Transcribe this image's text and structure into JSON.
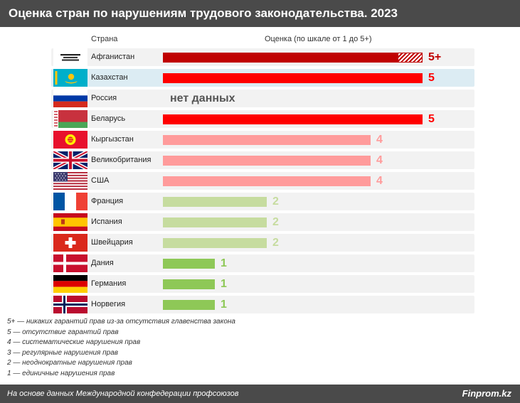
{
  "title": "Оценка стран по нарушениям трудового законодательства. 2023",
  "headers": {
    "country": "Страна",
    "score": "Оценка (по шкале от 1 до 5+)"
  },
  "colors": {
    "5plus": "#c00000",
    "5": "#ff0000",
    "4": "#ff9b9b",
    "2": "#c6dc9f",
    "1": "#8ec857",
    "nodata": "#555555"
  },
  "chart_data": {
    "type": "bar",
    "orientation": "horizontal",
    "scale_max": 5,
    "categories": [
      "Афганистан",
      "Казахстан",
      "Россия",
      "Беларусь",
      "Кыргызстан",
      "Великобритания",
      "США",
      "Франция",
      "Испания",
      "Швейцария",
      "Дания",
      "Германия",
      "Норвегия"
    ],
    "rows": [
      {
        "country": "Афганистан",
        "value": 5,
        "label": "5+",
        "category": "5plus",
        "flag": "afghanistan-flag"
      },
      {
        "country": "Казахстан",
        "value": 5,
        "label": "5",
        "category": "5",
        "flag": "kazakhstan-flag",
        "highlight": true
      },
      {
        "country": "Россия",
        "value": null,
        "label": "нет данных",
        "category": "nodata",
        "flag": "russia-flag"
      },
      {
        "country": "Беларусь",
        "value": 5,
        "label": "5",
        "category": "5",
        "flag": "belarus-flag"
      },
      {
        "country": "Кыргызстан",
        "value": 4,
        "label": "4",
        "category": "4",
        "flag": "kyrgyzstan-flag"
      },
      {
        "country": "Великобритания",
        "value": 4,
        "label": "4",
        "category": "4",
        "flag": "uk-flag"
      },
      {
        "country": "США",
        "value": 4,
        "label": "4",
        "category": "4",
        "flag": "usa-flag"
      },
      {
        "country": "Франция",
        "value": 2,
        "label": "2",
        "category": "2",
        "flag": "france-flag"
      },
      {
        "country": "Испания",
        "value": 2,
        "label": "2",
        "category": "2",
        "flag": "spain-flag"
      },
      {
        "country": "Швейцария",
        "value": 2,
        "label": "2",
        "category": "2",
        "flag": "switzerland-flag"
      },
      {
        "country": "Дания",
        "value": 1,
        "label": "1",
        "category": "1",
        "flag": "denmark-flag"
      },
      {
        "country": "Германия",
        "value": 1,
        "label": "1",
        "category": "1",
        "flag": "germany-flag"
      },
      {
        "country": "Норвегия",
        "value": 1,
        "label": "1",
        "category": "1",
        "flag": "norway-flag"
      }
    ]
  },
  "legend": [
    "5+ — никаких гарантий прав из-за отсутствия главенства закона",
    "5 — отсутствие гарантий прав",
    "4 — систематические нарушения прав",
    "3 — регулярные нарушения прав",
    "2 — неоднократные нарушения прав",
    "1 — единичные нарушения прав"
  ],
  "footer": {
    "source": "На основе данных Международной конфедерации профсоюзов",
    "brand": "Finprom.kz"
  }
}
